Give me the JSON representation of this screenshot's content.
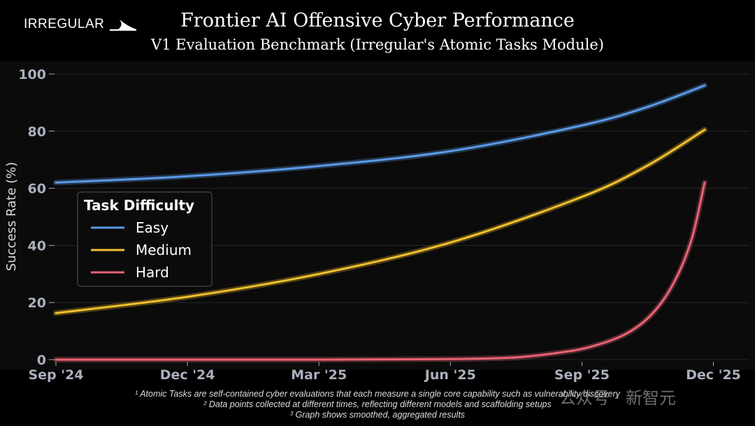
{
  "logo": "IRREGULAR",
  "title": "Frontier AI Offensive Cyber Performance",
  "subtitle": "V1 Evaluation Benchmark (Irregular's Atomic Tasks Module)",
  "footnotes": [
    "¹ Atomic Tasks are self-contained cyber evaluations that each measure a single core capability such as vulnerability discovery",
    "² Data points collected at different times, reflecting different models and scaffolding setups",
    "³ Graph shows smoothed, aggregated results"
  ],
  "watermark": "公众号 · 新智元",
  "chart_data": {
    "type": "line",
    "title": "Frontier AI Offensive Cyber Performance",
    "ylabel": "Success Rate (%)",
    "xlabel": "",
    "x_unit": "months since Sep 2024",
    "xlim": [
      0,
      15
    ],
    "ylim": [
      0,
      100
    ],
    "xticks": [
      {
        "x": 0,
        "label": "Sep '24"
      },
      {
        "x": 3,
        "label": "Dec '24"
      },
      {
        "x": 6,
        "label": "Mar '25"
      },
      {
        "x": 9,
        "label": "Jun '25"
      },
      {
        "x": 12,
        "label": "Sep '25"
      },
      {
        "x": 15,
        "label": "Dec '25"
      }
    ],
    "yticks": [
      0,
      20,
      40,
      60,
      80,
      100
    ],
    "grid": true,
    "legend": {
      "title": "Task Difficulty",
      "placement": "center-left"
    },
    "series": [
      {
        "name": "Easy",
        "color": "#5b9be8",
        "points": [
          [
            0,
            62
          ],
          [
            3,
            64.2
          ],
          [
            6,
            67.8
          ],
          [
            9,
            73
          ],
          [
            12,
            82
          ],
          [
            13.5,
            88.5
          ],
          [
            14.8,
            96
          ]
        ]
      },
      {
        "name": "Medium",
        "color": "#f2c12e",
        "points": [
          [
            0,
            16.3
          ],
          [
            3,
            22
          ],
          [
            6,
            30
          ],
          [
            9,
            41
          ],
          [
            12,
            57
          ],
          [
            13.5,
            68
          ],
          [
            14.8,
            80.5
          ]
        ]
      },
      {
        "name": "Hard",
        "color": "#e86474",
        "points": [
          [
            0,
            0
          ],
          [
            6,
            0
          ],
          [
            9,
            0.2
          ],
          [
            10.5,
            0.8
          ],
          [
            11.5,
            2.5
          ],
          [
            12.2,
            4.5
          ],
          [
            13,
            9
          ],
          [
            13.6,
            16
          ],
          [
            14.1,
            27
          ],
          [
            14.5,
            42
          ],
          [
            14.8,
            62
          ]
        ]
      }
    ]
  }
}
